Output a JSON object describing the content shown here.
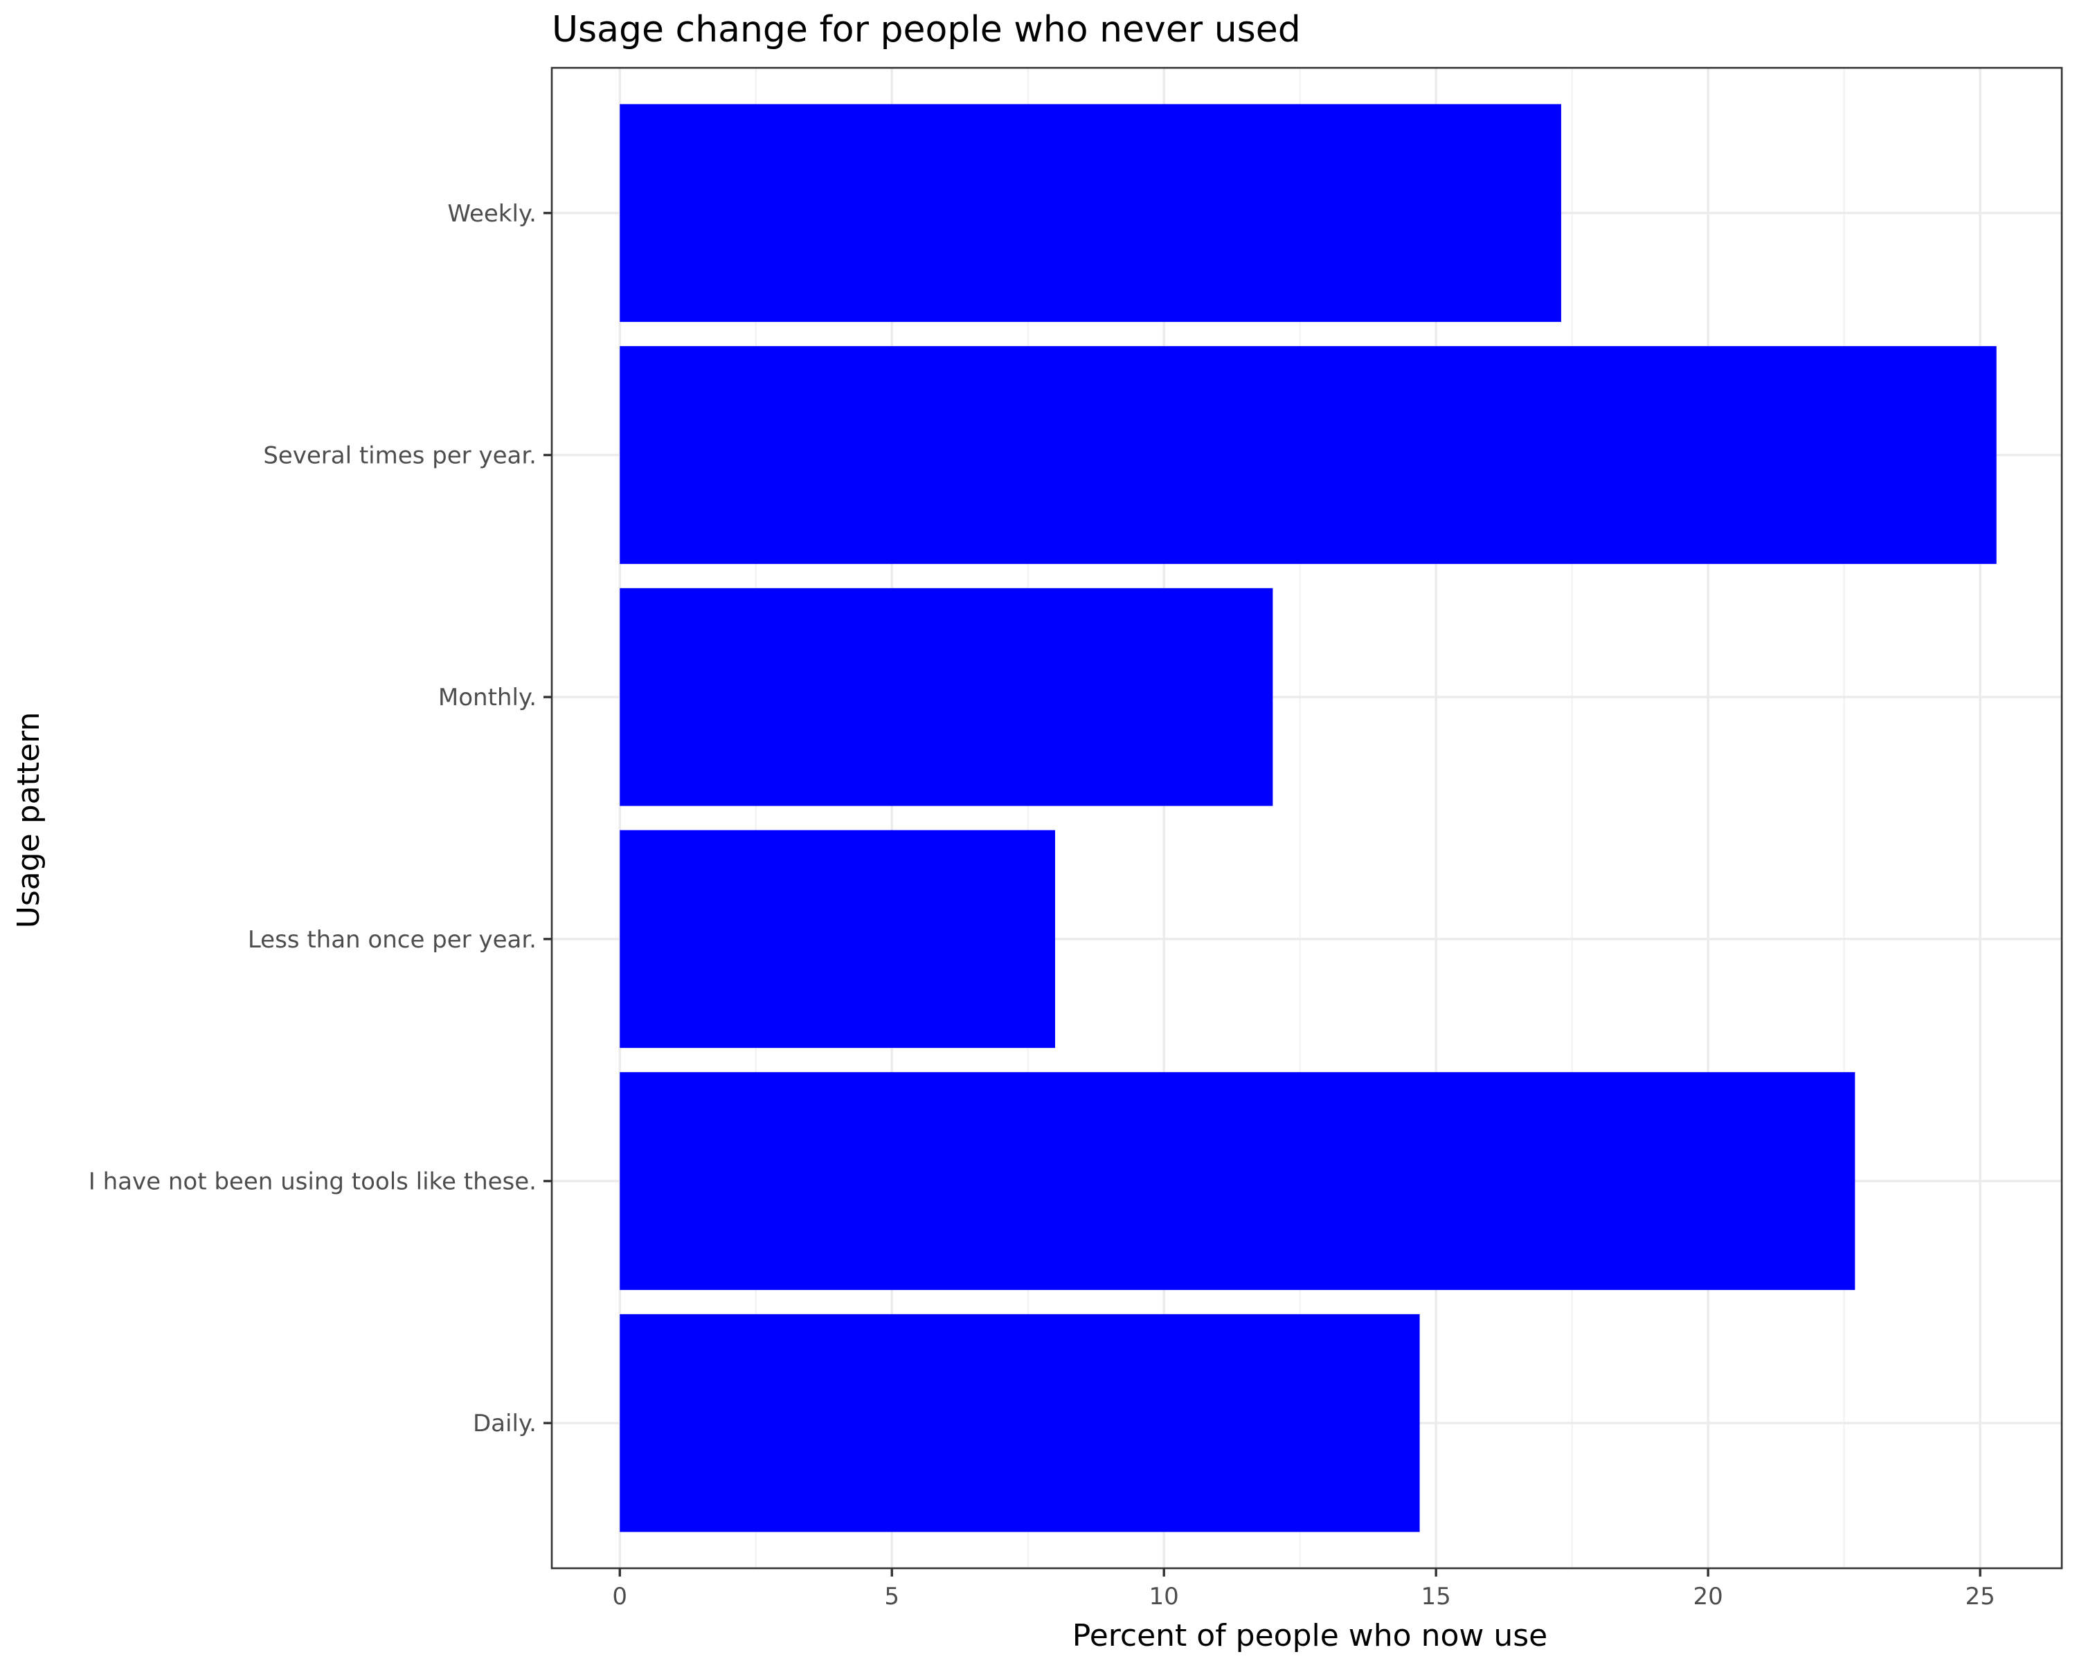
{
  "chart_data": {
    "type": "bar",
    "orientation": "horizontal",
    "title": "Usage change for people who never used",
    "xlabel": "Percent of people who now use",
    "ylabel": "Usage pattern",
    "categories": [
      "Daily.",
      "I have not been using tools like these.",
      "Less than once per year.",
      "Monthly.",
      "Several times per year.",
      "Weekly."
    ],
    "values": [
      14.7,
      22.7,
      8.0,
      12.0,
      25.3,
      17.3
    ],
    "xlim": [
      -1.25,
      26.5
    ],
    "xticks": [
      0,
      5,
      10,
      15,
      20,
      25
    ],
    "grid": true,
    "bar_color": "#0000ff"
  }
}
